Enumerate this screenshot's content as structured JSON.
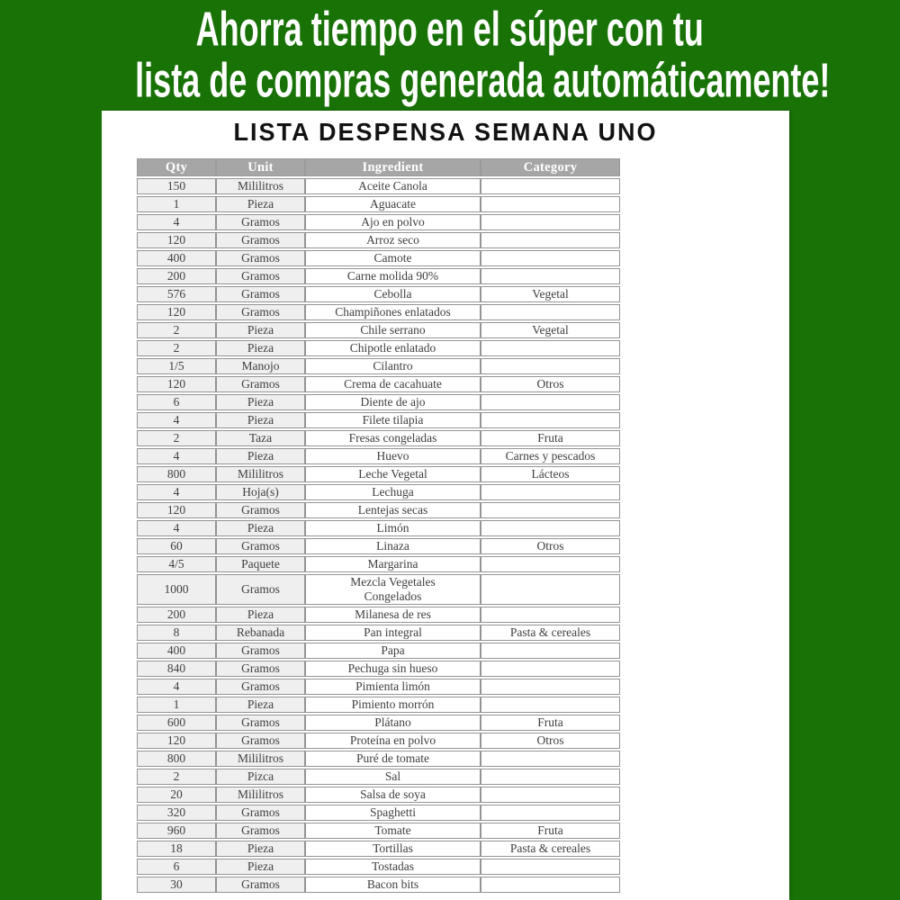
{
  "banner": {
    "line1": "Ahorra tiempo en el súper con tu",
    "line2": "lista de compras generada automáticamente!"
  },
  "sheet": {
    "title": "LISTA DESPENSA SEMANA UNO"
  },
  "table": {
    "columns": [
      "Qty",
      "Unit",
      "Ingredient",
      "Category"
    ],
    "rows": [
      {
        "qty": "150",
        "unit": "Mililitros",
        "ingredient": "Aceite Canola",
        "category": ""
      },
      {
        "qty": "1",
        "unit": "Pieza",
        "ingredient": "Aguacate",
        "category": ""
      },
      {
        "qty": "4",
        "unit": "Gramos",
        "ingredient": "Ajo en polvo",
        "category": ""
      },
      {
        "qty": "120",
        "unit": "Gramos",
        "ingredient": "Arroz seco",
        "category": ""
      },
      {
        "qty": "400",
        "unit": "Gramos",
        "ingredient": "Camote",
        "category": ""
      },
      {
        "qty": "200",
        "unit": "Gramos",
        "ingredient": "Carne molida 90%",
        "category": ""
      },
      {
        "qty": "576",
        "unit": "Gramos",
        "ingredient": "Cebolla",
        "category": "Vegetal"
      },
      {
        "qty": "120",
        "unit": "Gramos",
        "ingredient": "Champiñones enlatados",
        "category": ""
      },
      {
        "qty": "2",
        "unit": "Pieza",
        "ingredient": "Chile serrano",
        "category": "Vegetal"
      },
      {
        "qty": "2",
        "unit": "Pieza",
        "ingredient": "Chipotle enlatado",
        "category": ""
      },
      {
        "qty": "1/5",
        "unit": "Manojo",
        "ingredient": "Cilantro",
        "category": ""
      },
      {
        "qty": "120",
        "unit": "Gramos",
        "ingredient": "Crema de cacahuate",
        "category": "Otros"
      },
      {
        "qty": "6",
        "unit": "Pieza",
        "ingredient": "Diente de ajo",
        "category": ""
      },
      {
        "qty": "4",
        "unit": "Pieza",
        "ingredient": "Filete tilapia",
        "category": ""
      },
      {
        "qty": "2",
        "unit": "Taza",
        "ingredient": "Fresas congeladas",
        "category": "Fruta"
      },
      {
        "qty": "4",
        "unit": "Pieza",
        "ingredient": "Huevo",
        "category": "Carnes y pescados"
      },
      {
        "qty": "800",
        "unit": "Mililitros",
        "ingredient": "Leche Vegetal",
        "category": "Lácteos"
      },
      {
        "qty": "4",
        "unit": "Hoja(s)",
        "ingredient": "Lechuga",
        "category": ""
      },
      {
        "qty": "120",
        "unit": "Gramos",
        "ingredient": "Lentejas secas",
        "category": ""
      },
      {
        "qty": "4",
        "unit": "Pieza",
        "ingredient": "Limón",
        "category": ""
      },
      {
        "qty": "60",
        "unit": "Gramos",
        "ingredient": "Linaza",
        "category": "Otros"
      },
      {
        "qty": "4/5",
        "unit": "Paquete",
        "ingredient": "Margarina",
        "category": ""
      },
      {
        "qty": "1000",
        "unit": "Gramos",
        "ingredient": "Mezcla Vegetales\nCongelados",
        "category": ""
      },
      {
        "qty": "200",
        "unit": "Pieza",
        "ingredient": "Milanesa de res",
        "category": ""
      },
      {
        "qty": "8",
        "unit": "Rebanada",
        "ingredient": "Pan integral",
        "category": "Pasta & cereales"
      },
      {
        "qty": "400",
        "unit": "Gramos",
        "ingredient": "Papa",
        "category": ""
      },
      {
        "qty": "840",
        "unit": "Gramos",
        "ingredient": "Pechuga sin hueso",
        "category": ""
      },
      {
        "qty": "4",
        "unit": "Gramos",
        "ingredient": "Pimienta limón",
        "category": ""
      },
      {
        "qty": "1",
        "unit": "Pieza",
        "ingredient": "Pimiento morrón",
        "category": ""
      },
      {
        "qty": "600",
        "unit": "Gramos",
        "ingredient": "Plátano",
        "category": "Fruta"
      },
      {
        "qty": "120",
        "unit": "Gramos",
        "ingredient": "Proteína en polvo",
        "category": "Otros"
      },
      {
        "qty": "800",
        "unit": "Mililitros",
        "ingredient": "Puré de tomate",
        "category": ""
      },
      {
        "qty": "2",
        "unit": "Pizca",
        "ingredient": "Sal",
        "category": ""
      },
      {
        "qty": "20",
        "unit": "Mililitros",
        "ingredient": "Salsa de soya",
        "category": ""
      },
      {
        "qty": "320",
        "unit": "Gramos",
        "ingredient": "Spaghetti",
        "category": ""
      },
      {
        "qty": "960",
        "unit": "Gramos",
        "ingredient": "Tomate",
        "category": "Fruta"
      },
      {
        "qty": "18",
        "unit": "Pieza",
        "ingredient": "Tortillas",
        "category": "Pasta & cereales"
      },
      {
        "qty": "6",
        "unit": "Pieza",
        "ingredient": "Tostadas",
        "category": ""
      },
      {
        "qty": "30",
        "unit": "Gramos",
        "ingredient": "Bacon bits",
        "category": ""
      }
    ]
  },
  "colors": {
    "background_green": "#187206",
    "banner_text": "#ffffff",
    "header_row_gray": "#a6a6a6",
    "header_text": "#ffffff",
    "qty_unit_cell_gray": "#efefef",
    "cell_border_gray": "#949494",
    "body_text_gray": "#404040",
    "title_black": "#121212",
    "sheet_white": "#ffffff"
  }
}
